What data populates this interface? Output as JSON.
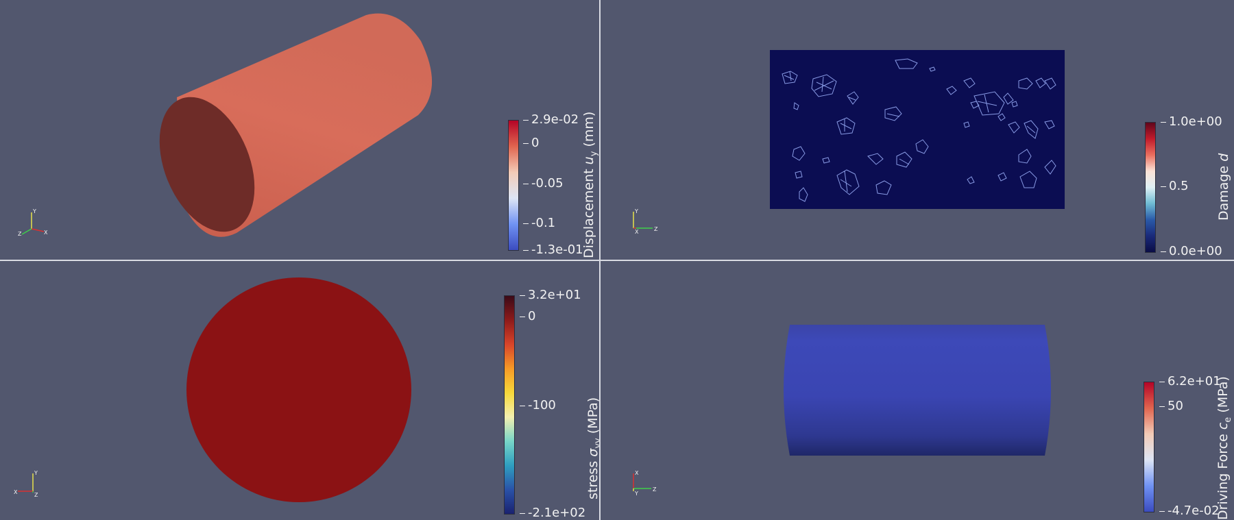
{
  "views": {
    "top_left": {
      "colorbar": {
        "title": "Displacement u_y (mm)",
        "title_prefix": "Displacement ",
        "title_var": "u",
        "title_sub": "y",
        "title_suffix": " (mm)",
        "ticks": [
          "2.9e-02",
          "0",
          "-0.05",
          "-0.1",
          "-1.3e-01"
        ],
        "colormap": "cool-to-warm",
        "range": [
          -0.13,
          0.029
        ]
      },
      "object": "cylinder-oblique",
      "surface_color": "#d76a57",
      "axes_labels": {
        "y": "Y",
        "x": "X",
        "z": "Z"
      }
    },
    "top_right": {
      "colorbar": {
        "title": "Damage d",
        "title_prefix": "Damage ",
        "title_var": "d",
        "ticks": [
          "1.0e+00",
          "0.5",
          "0.0e+00"
        ],
        "colormap": "blue-white-red",
        "range": [
          0,
          1
        ]
      },
      "object": "damage-slice",
      "background_fill": "#0b0d52",
      "axes_labels": {
        "y": "Y",
        "x": "X",
        "z": "Z"
      }
    },
    "bottom_left": {
      "colorbar": {
        "title": "stress σ_yy (MPa)",
        "title_prefix": "stress ",
        "title_var": "σ",
        "title_sub": "yy",
        "title_suffix": " (MPa)",
        "ticks": [
          "3.2e+01",
          "0",
          "-100",
          "-2.1e+02"
        ],
        "colormap": "jet",
        "range": [
          -210,
          32
        ]
      },
      "object": "disc-cross-section",
      "surface_color": "#8b1214",
      "axes_labels": {
        "y": "Y",
        "x": "X",
        "z": "Z"
      }
    },
    "bottom_right": {
      "colorbar": {
        "title": "Driving Force c_e (MPa)",
        "title_prefix": "Driving Force ",
        "title_var": "c",
        "title_sub": "e",
        "title_suffix": " (MPa)",
        "ticks": [
          "6.2e+01",
          "50",
          "-4.7e-02"
        ],
        "colormap": "cool-to-warm",
        "range": [
          -0.047,
          62
        ]
      },
      "object": "cylinder-side",
      "surface_color": "#3d49b8",
      "axes_labels": {
        "x": "X",
        "y": "Y",
        "z": "Z"
      }
    }
  }
}
